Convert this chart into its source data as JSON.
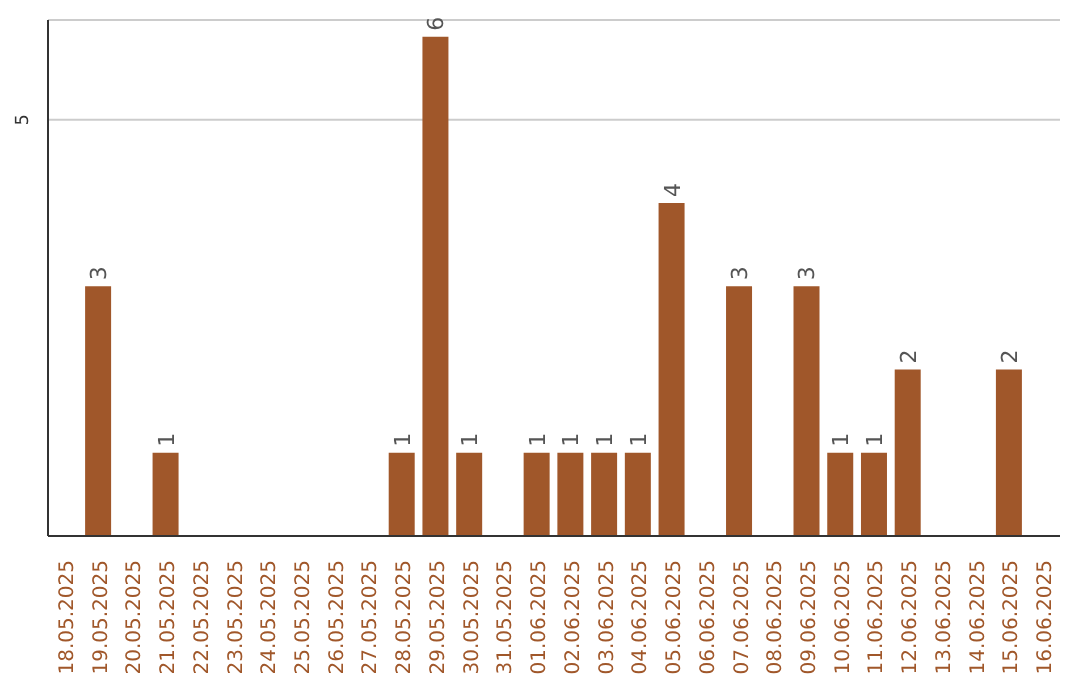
{
  "chart_data": {
    "type": "bar",
    "categories": [
      "18.05.2025",
      "19.05.2025",
      "20.05.2025",
      "21.05.2025",
      "22.05.2025",
      "23.05.2025",
      "24.05.2025",
      "25.05.2025",
      "26.05.2025",
      "27.05.2025",
      "28.05.2025",
      "29.05.2025",
      "30.05.2025",
      "31.05.2025",
      "01.06.2025",
      "02.06.2025",
      "03.06.2025",
      "04.06.2025",
      "05.06.2025",
      "06.06.2025",
      "07.06.2025",
      "08.06.2025",
      "09.06.2025",
      "10.06.2025",
      "11.06.2025",
      "12.06.2025",
      "13.06.2025",
      "14.06.2025",
      "15.06.2025",
      "16.06.2025"
    ],
    "values": [
      0,
      3,
      0,
      1,
      0,
      0,
      0,
      0,
      0,
      0,
      1,
      6,
      1,
      0,
      1,
      1,
      1,
      1,
      4,
      0,
      3,
      0,
      3,
      1,
      1,
      2,
      0,
      0,
      2,
      0
    ],
    "value_labels": [
      null,
      "3",
      null,
      "1",
      null,
      null,
      null,
      null,
      null,
      null,
      "1",
      "6",
      "1",
      null,
      "1",
      "1",
      "1",
      "1",
      "4",
      null,
      "3",
      null,
      "3",
      "1",
      "1",
      "2",
      null,
      null,
      "2",
      null
    ],
    "color": "#a0572a",
    "ylim": [
      0,
      6.2
    ],
    "yticks": [
      5
    ],
    "grid": "y"
  }
}
